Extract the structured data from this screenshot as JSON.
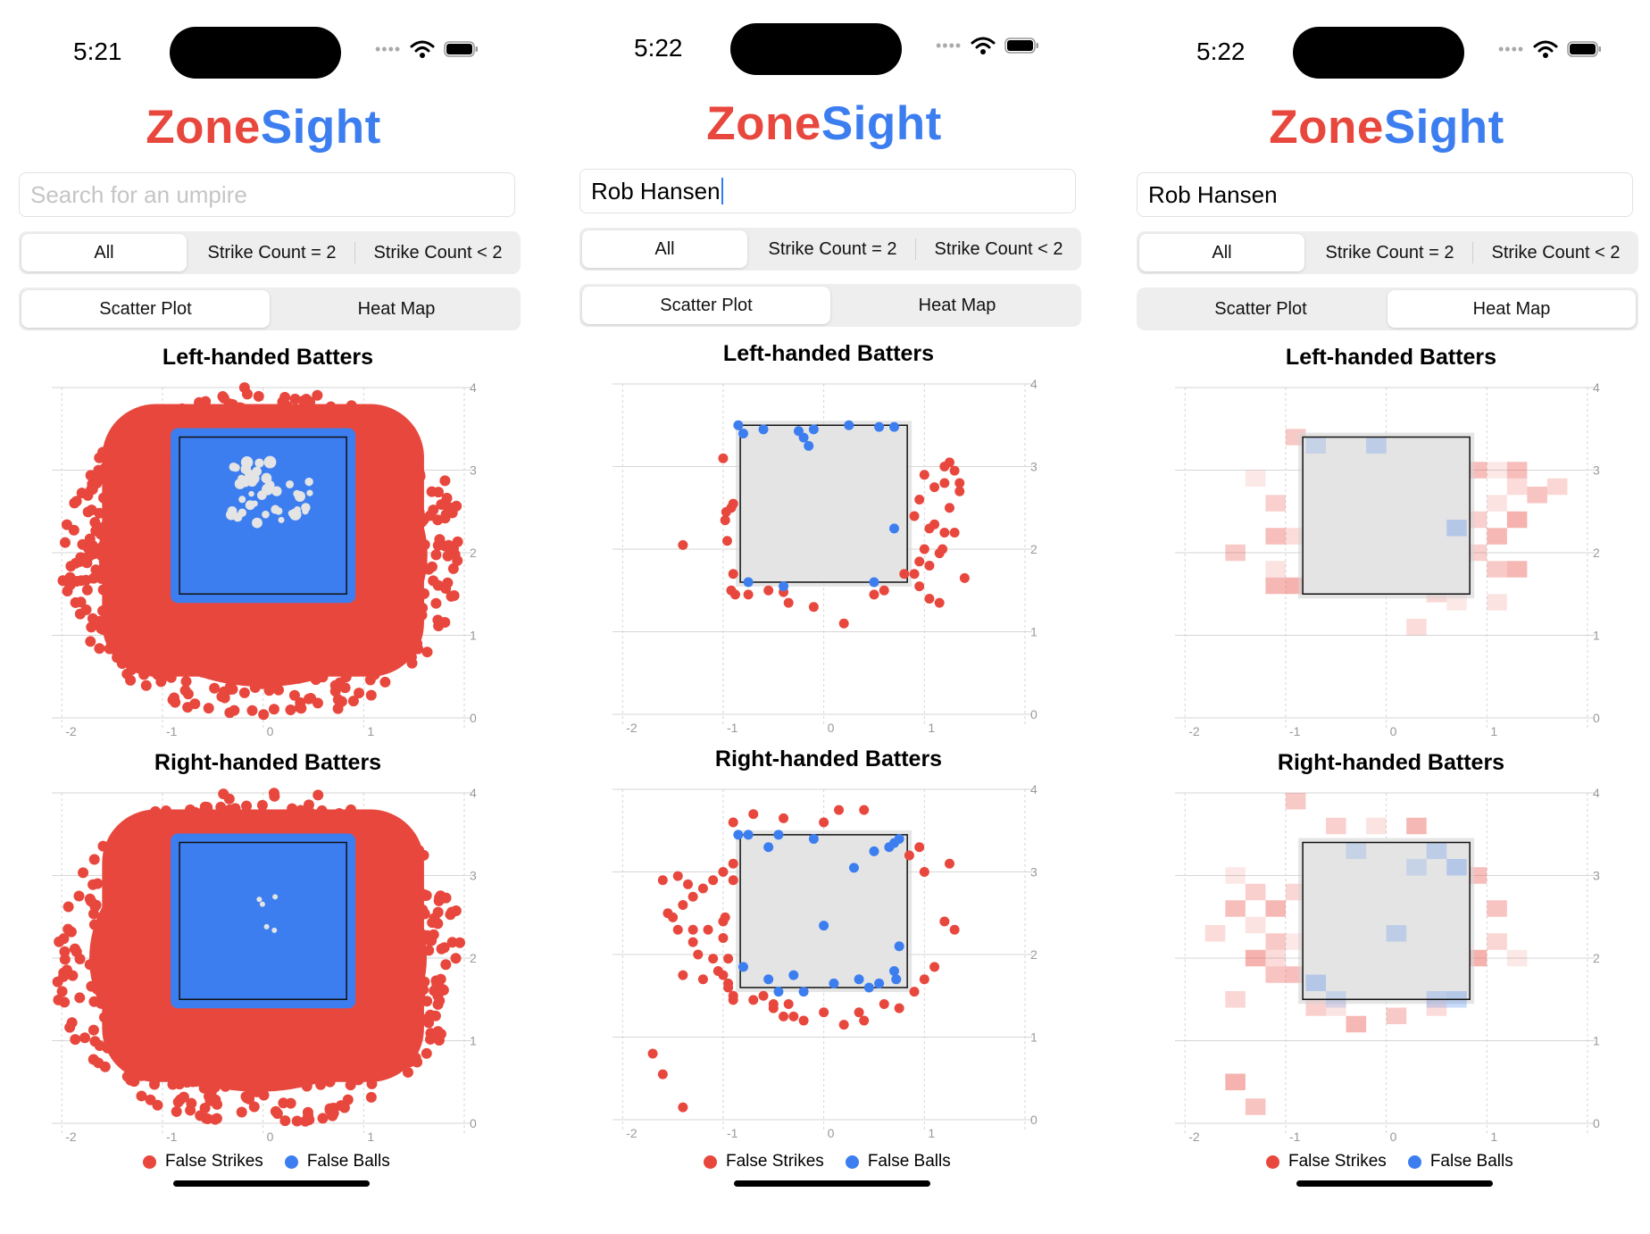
{
  "app": {
    "title_part1": "Zone",
    "title_part2": "Sight"
  },
  "colors": {
    "red": "#e8473d",
    "blue": "#3c7ef0",
    "zone_fill": "#e4e4e4"
  },
  "icons": [
    "wifi-icon",
    "battery-icon",
    "signal-icon"
  ],
  "phones": [
    {
      "time": "5:21",
      "search_text": "Search for an umpire",
      "search_is_placeholder": true,
      "filters": [
        "All",
        "Strike Count = 2",
        "Strike Count < 2"
      ],
      "filter_selected": "All",
      "views": [
        "Scatter Plot",
        "Heat Map"
      ],
      "view_selected": "Scatter Plot",
      "chart_left_title": "Left-handed Batters",
      "chart_right_title": "Right-handed Batters"
    },
    {
      "time": "5:22",
      "search_text": "Rob Hansen",
      "search_is_placeholder": false,
      "filters": [
        "All",
        "Strike Count = 2",
        "Strike Count < 2"
      ],
      "filter_selected": "All",
      "views": [
        "Scatter Plot",
        "Heat Map"
      ],
      "view_selected": "Scatter Plot",
      "chart_left_title": "Left-handed Batters",
      "chart_right_title": "Right-handed Batters"
    },
    {
      "time": "5:22",
      "search_text": "Rob Hansen",
      "search_is_placeholder": false,
      "filters": [
        "All",
        "Strike Count = 2",
        "Strike Count < 2"
      ],
      "filter_selected": "All",
      "views": [
        "Scatter Plot",
        "Heat Map"
      ],
      "view_selected": "Heat Map",
      "chart_left_title": "Left-handed Batters",
      "chart_right_title": "Right-handed Batters"
    }
  ],
  "legend": {
    "false_strikes": "False Strikes",
    "false_balls": "False Balls"
  },
  "chart_data": [
    {
      "type": "scatter",
      "title": "Left-handed Batters",
      "xlim": [
        -2.1,
        2.0
      ],
      "ylim": [
        0,
        4
      ],
      "xticks": [
        "-2",
        "-1",
        "0",
        "1"
      ],
      "yticks": [
        "0",
        "1",
        "2",
        "3",
        "4"
      ],
      "strike_zone": {
        "x": [
          -0.83,
          0.83
        ],
        "y": [
          1.5,
          3.4
        ]
      },
      "series": [
        {
          "name": "False Strikes",
          "color": "#e8473d",
          "description": "dense cloud surrounding zone",
          "extent_x": [
            -1.9,
            1.9
          ],
          "extent_y": [
            0.05,
            3.9
          ]
        },
        {
          "name": "False Balls",
          "color": "#3c7ef0",
          "description": "dense fill inside zone"
        }
      ],
      "grid": true
    },
    {
      "type": "scatter",
      "title": "Right-handed Batters",
      "xlim": [
        -2.1,
        2.0
      ],
      "ylim": [
        0,
        4
      ],
      "xticks": [
        "-2",
        "-1",
        "0",
        "1"
      ],
      "yticks": [
        "0",
        "1",
        "2",
        "3",
        "4"
      ],
      "strike_zone": {
        "x": [
          -0.83,
          0.83
        ],
        "y": [
          1.5,
          3.4
        ]
      },
      "series": [
        {
          "name": "False Strikes",
          "color": "#e8473d",
          "extent_x": [
            -2.0,
            1.9
          ],
          "extent_y": [
            0.05,
            3.95
          ]
        },
        {
          "name": "False Balls",
          "color": "#3c7ef0"
        }
      ],
      "grid": true
    },
    {
      "type": "scatter",
      "title": "Left-handed Batters",
      "xlim": [
        -2.1,
        2.0
      ],
      "ylim": [
        0,
        4
      ],
      "strike_zone": {
        "x": [
          -0.83,
          0.83
        ],
        "y": [
          1.6,
          3.5
        ]
      },
      "series": [
        {
          "name": "False Strikes",
          "color": "#e8473d",
          "x": [
            -1.4,
            -1.0,
            -0.97,
            -0.92,
            -0.9,
            -0.98,
            -0.96,
            -0.9,
            -0.88,
            -0.92,
            -0.75,
            -0.55,
            -0.4,
            -0.35,
            -0.1,
            0.2,
            0.5,
            0.6,
            0.8,
            0.95,
            1.05,
            1.15,
            1.2,
            1.25,
            1.3,
            1.35,
            1.2,
            1.1,
            1.0,
            0.95,
            0.9,
            1.05,
            1.1,
            1.2,
            1.3,
            1.0,
            1.15,
            0.95,
            0.9,
            1.05,
            1.35,
            1.25,
            1.18,
            1.4
          ],
          "y": [
            2.05,
            3.1,
            2.45,
            2.5,
            2.55,
            2.35,
            2.1,
            1.7,
            1.45,
            1.5,
            1.45,
            1.5,
            1.48,
            1.35,
            1.3,
            1.1,
            1.45,
            1.5,
            1.7,
            1.55,
            1.4,
            1.35,
            3.0,
            3.05,
            2.95,
            2.8,
            2.8,
            2.75,
            2.9,
            2.6,
            2.4,
            2.25,
            2.3,
            2.2,
            2.2,
            2.0,
            1.95,
            1.85,
            1.7,
            1.8,
            2.7,
            2.5,
            2.0,
            1.65
          ]
        },
        {
          "name": "False Balls",
          "color": "#3c7ef0",
          "x": [
            -0.85,
            -0.8,
            -0.6,
            -0.25,
            -0.2,
            -0.15,
            -0.1,
            0.25,
            0.55,
            0.7,
            0.7,
            -0.75,
            -0.4,
            0.5
          ],
          "y": [
            3.5,
            3.4,
            3.45,
            3.43,
            3.35,
            3.25,
            3.45,
            3.5,
            3.48,
            3.48,
            2.25,
            1.6,
            1.55,
            1.6
          ]
        }
      ]
    },
    {
      "type": "scatter",
      "title": "Right-handed Batters",
      "xlim": [
        -2.1,
        2.0
      ],
      "ylim": [
        0,
        4
      ],
      "strike_zone": {
        "x": [
          -0.83,
          0.83
        ],
        "y": [
          1.6,
          3.45
        ]
      },
      "series": [
        {
          "name": "False Strikes",
          "color": "#e8473d",
          "x": [
            -1.6,
            -1.45,
            -1.35,
            -1.55,
            -1.5,
            -1.4,
            -1.3,
            -1.2,
            -1.1,
            -1.0,
            -0.9,
            -1.45,
            -1.3,
            -1.15,
            -1.0,
            -1.25,
            -1.1,
            -0.95,
            -1.4,
            -1.2,
            -1.05,
            -0.95,
            -0.98,
            -0.9,
            -1.3,
            -1.0,
            -0.9,
            -0.7,
            -0.5,
            -0.35,
            -0.2,
            0.0,
            0.2,
            0.35,
            0.4,
            0.6,
            0.75,
            0.9,
            1.0,
            1.1,
            1.2,
            1.3,
            1.25,
            1.0,
            0.85,
            0.95,
            -0.9,
            -0.7,
            -0.4,
            0.0,
            0.15,
            0.4,
            -0.9,
            -0.95,
            -1.0,
            -0.5,
            -0.3,
            -0.6,
            -0.4,
            -1.7,
            -1.6,
            -1.4
          ],
          "y": [
            2.9,
            2.95,
            2.85,
            2.5,
            2.45,
            2.6,
            2.7,
            2.8,
            2.9,
            3.0,
            2.9,
            2.3,
            2.3,
            2.3,
            2.2,
            2.0,
            1.95,
            1.95,
            1.75,
            1.7,
            1.8,
            1.65,
            2.45,
            3.1,
            2.15,
            2.4,
            1.45,
            1.45,
            1.35,
            1.4,
            1.2,
            1.3,
            1.15,
            1.3,
            1.2,
            1.4,
            1.35,
            1.55,
            1.7,
            1.85,
            2.4,
            2.3,
            3.1,
            3.0,
            3.2,
            3.3,
            3.6,
            3.7,
            3.65,
            3.6,
            3.75,
            3.75,
            1.5,
            1.6,
            1.75,
            1.4,
            1.25,
            1.5,
            1.25,
            0.8,
            0.55,
            0.15
          ]
        },
        {
          "name": "False Balls",
          "color": "#3c7ef0",
          "x": [
            -0.85,
            -0.75,
            -0.55,
            -0.45,
            -0.1,
            0.3,
            0.5,
            0.65,
            0.7,
            0.75,
            -0.8,
            -0.55,
            -0.45,
            -0.3,
            -0.2,
            0.1,
            0.35,
            0.45,
            0.55,
            0.7,
            0.75,
            0.0,
            0.72
          ],
          "y": [
            3.45,
            3.45,
            3.3,
            3.45,
            3.4,
            3.05,
            3.25,
            3.3,
            3.35,
            3.4,
            1.85,
            1.7,
            1.55,
            1.75,
            1.55,
            1.65,
            1.7,
            1.6,
            1.65,
            1.8,
            2.1,
            2.35,
            1.7
          ]
        }
      ]
    },
    {
      "type": "heatmap",
      "title": "Left-handed Batters",
      "xlim": [
        -2.1,
        2.0
      ],
      "ylim": [
        0,
        4
      ],
      "strike_zone": {
        "x": [
          -0.83,
          0.83
        ],
        "y": [
          1.5,
          3.4
        ]
      },
      "cell_size": [
        0.2,
        0.2
      ],
      "false_strike_cells": [
        [
          -1.3,
          2.9
        ],
        [
          -1.1,
          2.2
        ],
        [
          -1.1,
          2.6
        ],
        [
          -1.1,
          1.8
        ],
        [
          -1.1,
          1.6
        ],
        [
          -0.9,
          3.4
        ],
        [
          -0.9,
          2.2
        ],
        [
          -0.9,
          1.6
        ],
        [
          -0.7,
          1.6
        ],
        [
          0.5,
          1.5
        ],
        [
          0.7,
          1.4
        ],
        [
          0.9,
          3.0
        ],
        [
          0.9,
          2.4
        ],
        [
          1.1,
          2.6
        ],
        [
          1.1,
          2.2
        ],
        [
          1.1,
          1.8
        ],
        [
          1.3,
          2.8
        ],
        [
          1.3,
          2.4
        ],
        [
          1.5,
          2.7
        ],
        [
          1.7,
          2.8
        ],
        [
          1.1,
          3.0
        ],
        [
          1.3,
          3.0
        ],
        [
          0.9,
          2.0
        ],
        [
          1.1,
          1.4
        ],
        [
          1.3,
          1.8
        ],
        [
          -1.5,
          2.0
        ],
        [
          0.3,
          1.1
        ]
      ],
      "false_ball_cells": [
        [
          -0.7,
          3.3
        ],
        [
          -0.1,
          3.3
        ],
        [
          0.7,
          2.3
        ]
      ]
    },
    {
      "type": "heatmap",
      "title": "Right-handed Batters",
      "xlim": [
        -2.1,
        2.0
      ],
      "ylim": [
        0,
        4
      ],
      "strike_zone": {
        "x": [
          -0.83,
          0.83
        ],
        "y": [
          1.5,
          3.4
        ]
      },
      "cell_size": [
        0.2,
        0.2
      ],
      "false_strike_cells": [
        [
          -1.5,
          3.0
        ],
        [
          -1.5,
          2.6
        ],
        [
          -1.3,
          2.8
        ],
        [
          -1.3,
          2.4
        ],
        [
          -1.1,
          2.6
        ],
        [
          -1.1,
          2.2
        ],
        [
          -1.1,
          2.0
        ],
        [
          -1.3,
          2.0
        ],
        [
          -1.1,
          1.8
        ],
        [
          -0.9,
          2.8
        ],
        [
          -0.9,
          2.2
        ],
        [
          -0.9,
          1.8
        ],
        [
          -0.7,
          1.4
        ],
        [
          -0.5,
          1.4
        ],
        [
          -0.3,
          1.2
        ],
        [
          0.1,
          1.3
        ],
        [
          0.5,
          1.4
        ],
        [
          0.9,
          2.0
        ],
        [
          1.1,
          2.6
        ],
        [
          1.1,
          2.2
        ],
        [
          1.3,
          2.0
        ],
        [
          0.9,
          3.0
        ],
        [
          -0.5,
          3.6
        ],
        [
          -0.1,
          3.6
        ],
        [
          0.3,
          3.6
        ],
        [
          -0.9,
          3.9
        ],
        [
          -1.7,
          2.3
        ],
        [
          -1.5,
          0.5
        ],
        [
          -1.3,
          0.2
        ],
        [
          -1.5,
          1.5
        ]
      ],
      "false_ball_cells": [
        [
          -0.3,
          3.3
        ],
        [
          0.5,
          3.3
        ],
        [
          0.7,
          3.1
        ],
        [
          0.3,
          3.1
        ],
        [
          0.1,
          2.3
        ],
        [
          -0.7,
          1.7
        ],
        [
          -0.5,
          1.5
        ],
        [
          0.5,
          1.5
        ],
        [
          0.7,
          1.5
        ]
      ]
    }
  ]
}
